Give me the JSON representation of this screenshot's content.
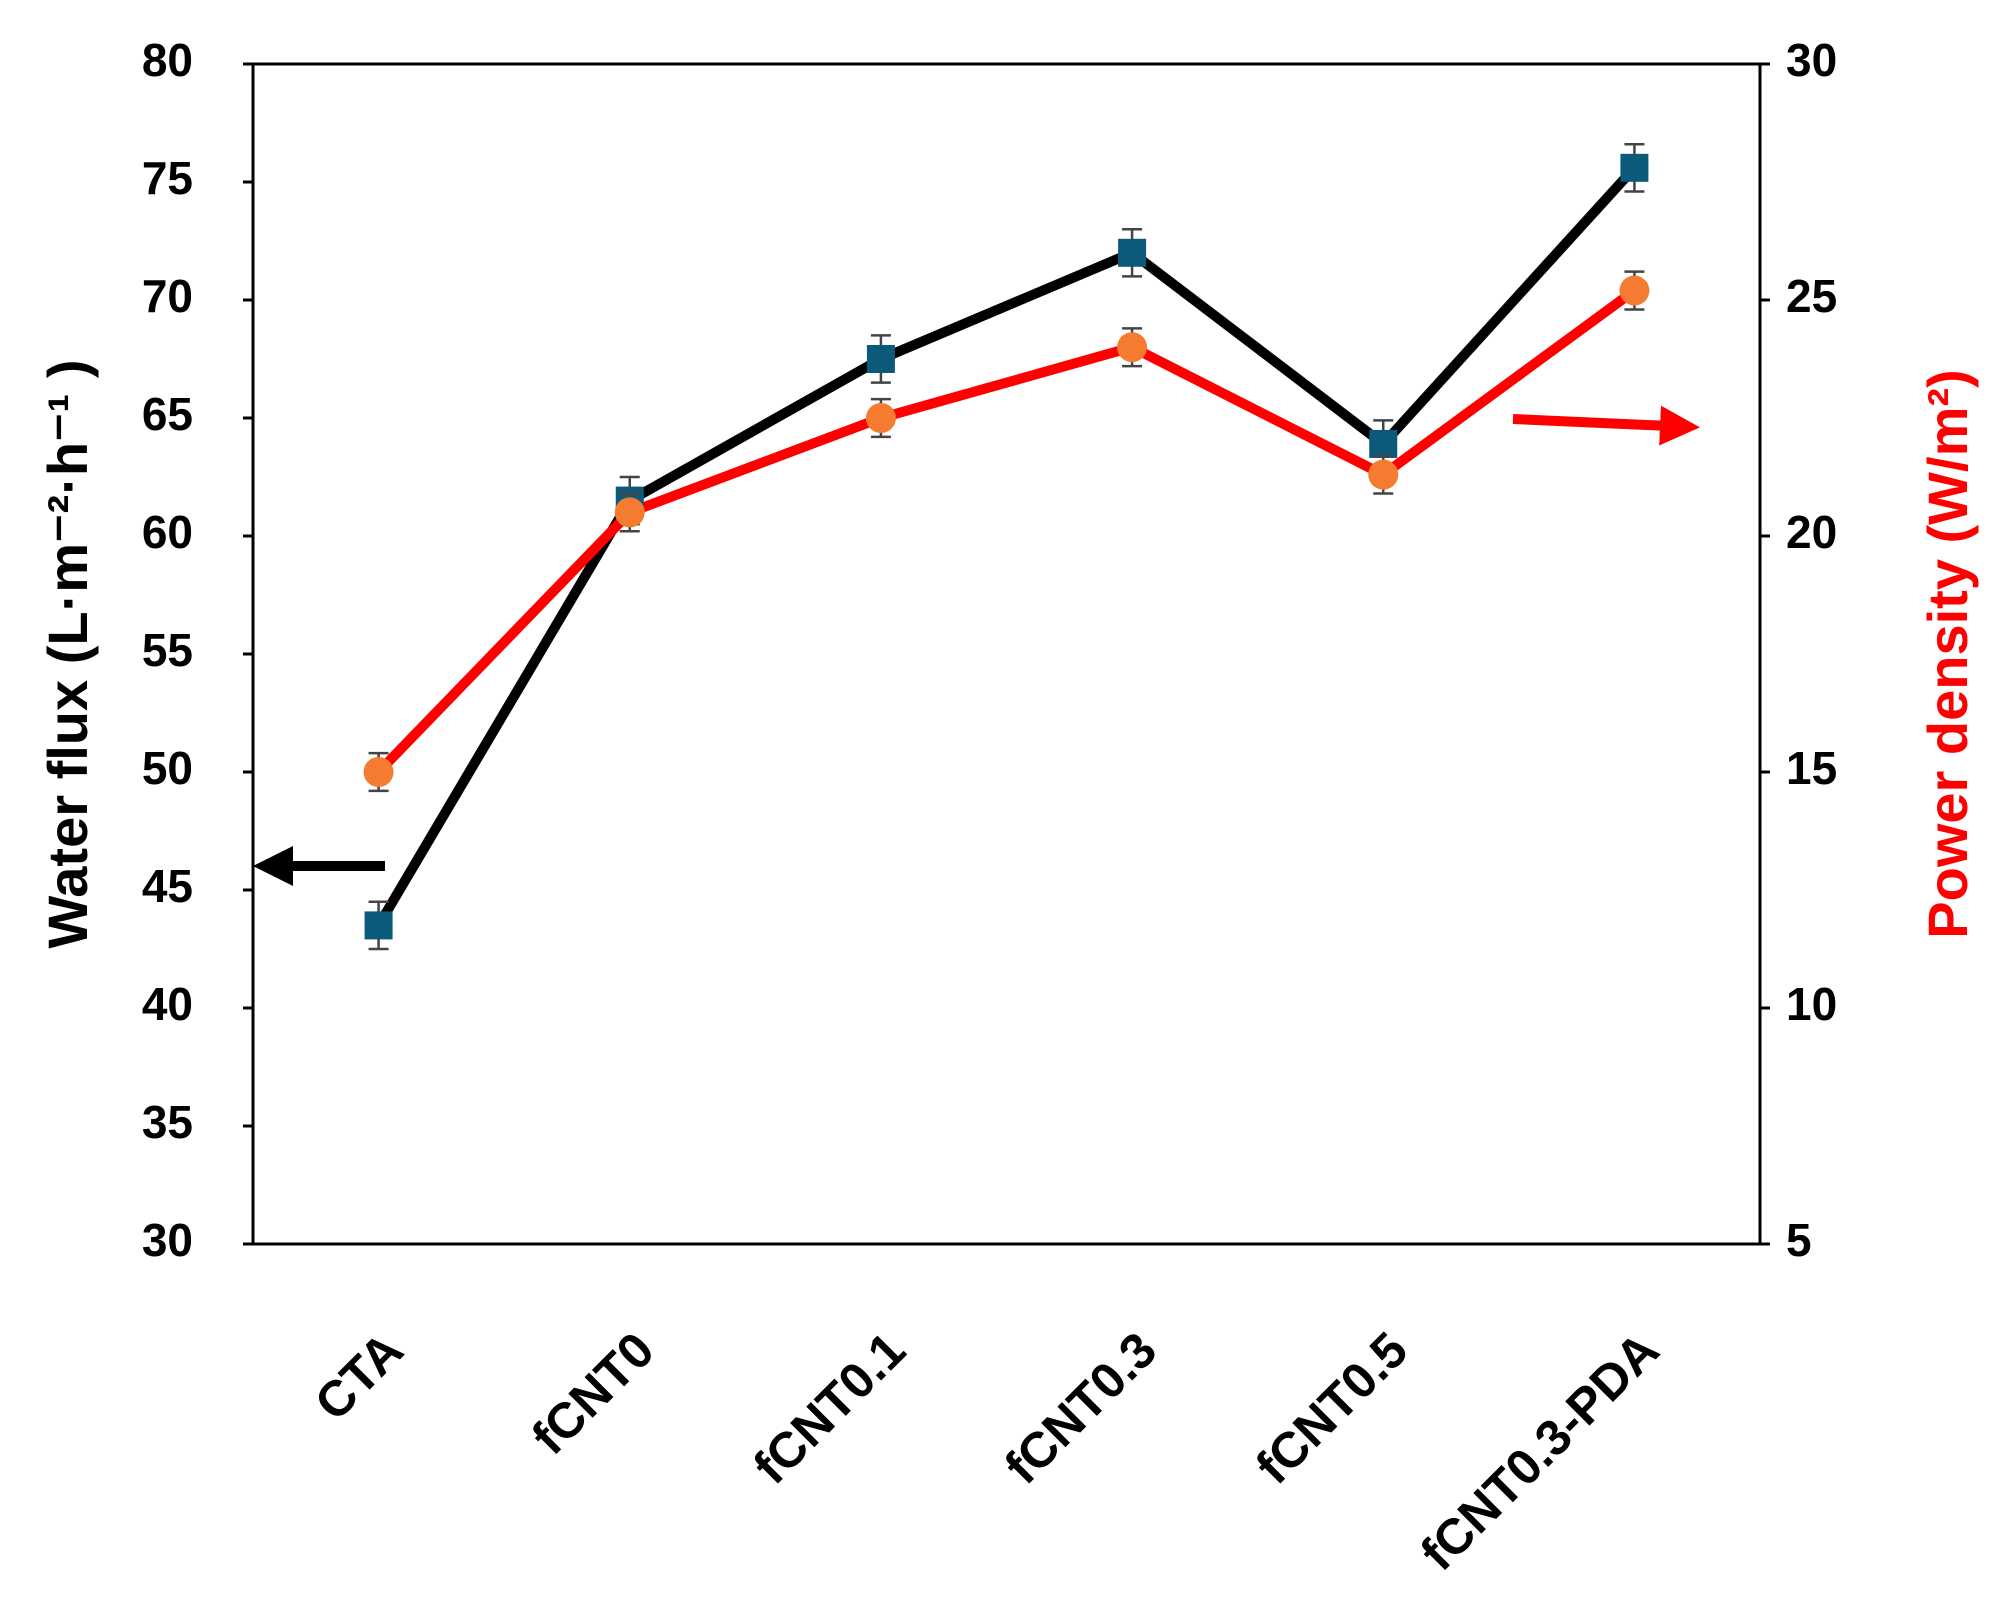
{
  "chart_data": {
    "type": "line",
    "categories": [
      "CTA",
      "fCNT0",
      "fCNT0.1",
      "fCNT0.3",
      "fCNT0.5",
      "fCNT0.3-PDA"
    ],
    "ylabel": "Water flux (L·m⁻²·h⁻¹ )",
    "y2label": "Power density (W/m²)",
    "ylim": [
      30,
      80
    ],
    "yticks": [
      30,
      35,
      40,
      45,
      50,
      55,
      60,
      65,
      70,
      75,
      80
    ],
    "y2lim": [
      5,
      30
    ],
    "y2ticks": [
      5,
      10,
      15,
      20,
      25,
      30
    ],
    "series": [
      {
        "name": "Water flux",
        "color": "#000000",
        "marker": "square",
        "marker_color": "#0b5a7a",
        "values": [
          43.5,
          61.5,
          67.5,
          72.0,
          63.9,
          75.6
        ],
        "errors": [
          1.0,
          1.0,
          1.0,
          1.0,
          1.0,
          1.0
        ]
      },
      {
        "name": "Power density",
        "color": "#ff0000",
        "marker": "circle",
        "marker_color": "#f47b30",
        "axis": "y2",
        "values": [
          15.0,
          20.5,
          22.5,
          24.0,
          21.3,
          25.2
        ],
        "errors": [
          0.4,
          0.4,
          0.4,
          0.4,
          0.4,
          0.4
        ]
      }
    ]
  }
}
